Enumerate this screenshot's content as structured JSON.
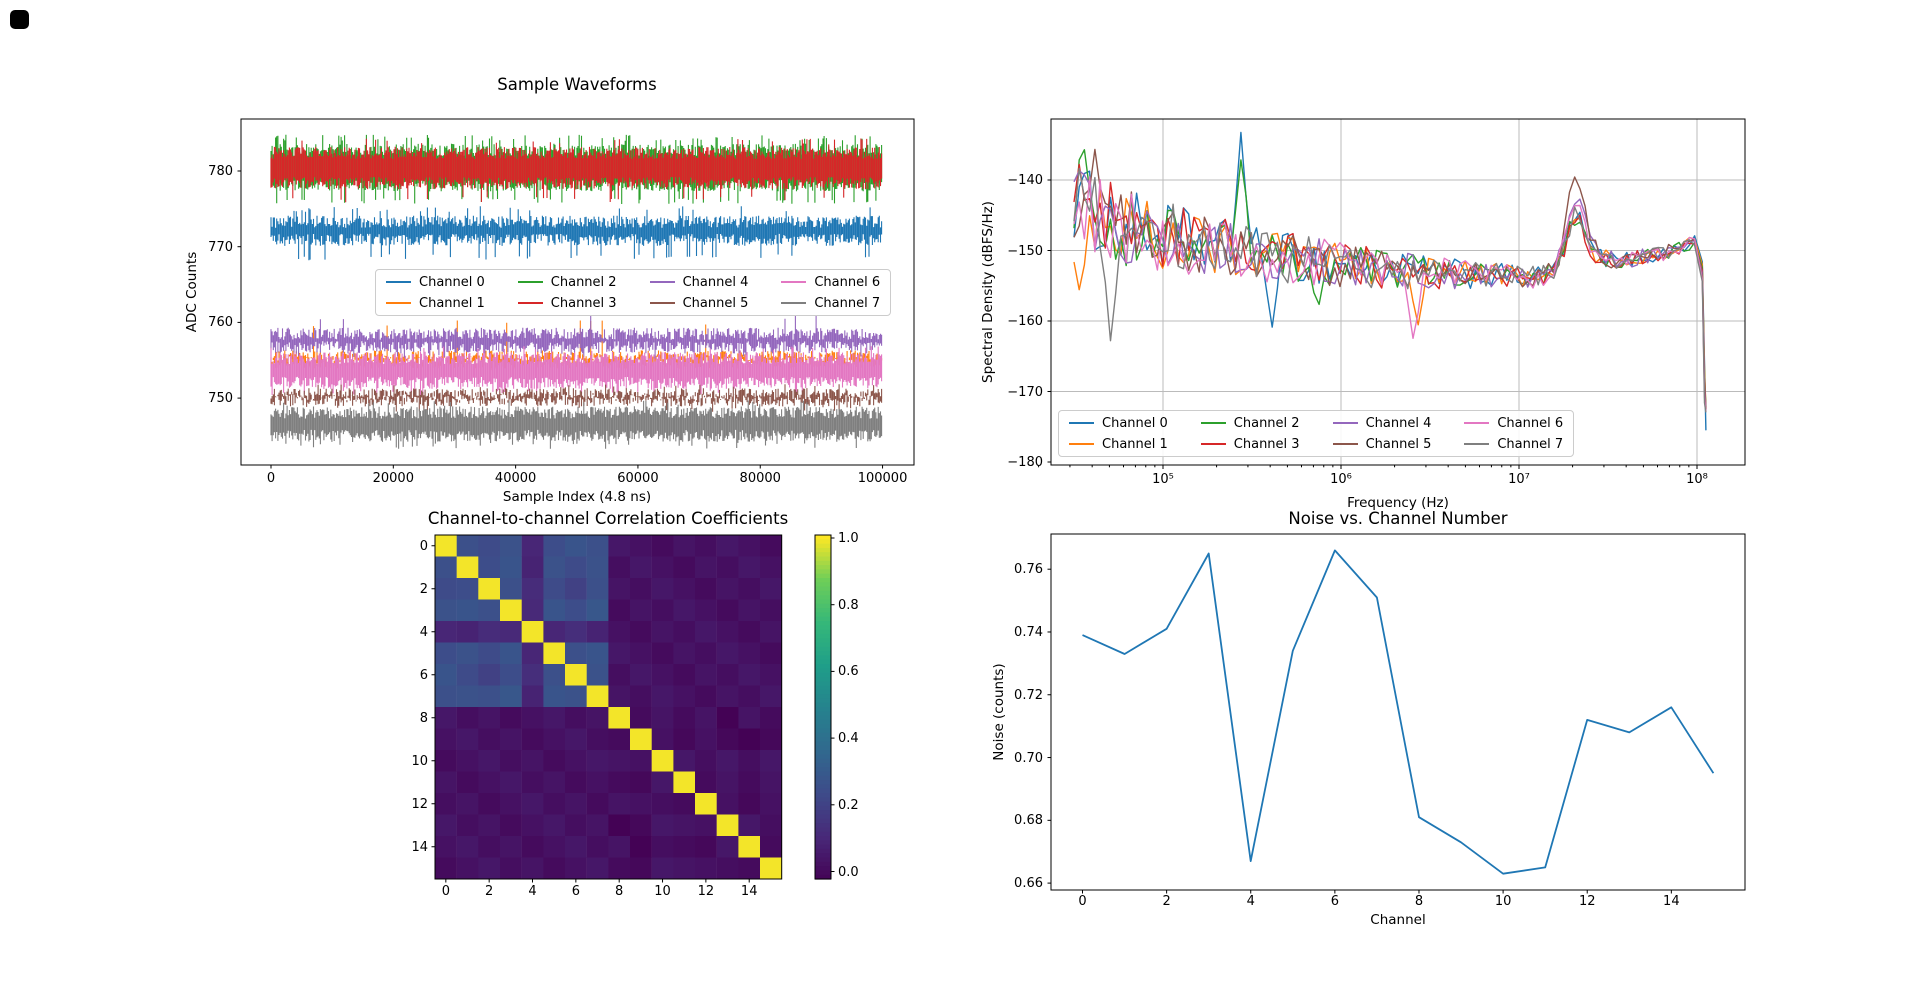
{
  "window": {
    "background": "#ffffff",
    "corner_mark_color": "#000000"
  },
  "channels": [
    {
      "label": "Channel 0",
      "color": "#1f77b4"
    },
    {
      "label": "Channel 1",
      "color": "#ff7f0e"
    },
    {
      "label": "Channel 2",
      "color": "#2ca02c"
    },
    {
      "label": "Channel 3",
      "color": "#d62728"
    },
    {
      "label": "Channel 4",
      "color": "#9467bd"
    },
    {
      "label": "Channel 5",
      "color": "#8c564b"
    },
    {
      "label": "Channel 6",
      "color": "#e377c2"
    },
    {
      "label": "Channel 7",
      "color": "#7f7f7f"
    }
  ],
  "chart_data": [
    {
      "id": "waveforms",
      "type": "line",
      "title": "Sample Waveforms",
      "xlabel": "Sample Index (4.8 ns)",
      "ylabel": "ADC Counts",
      "xlim": [
        -5000,
        105000
      ],
      "ylim": [
        741.4,
        786.5
      ],
      "xticks": [
        0,
        20000,
        40000,
        60000,
        80000,
        100000
      ],
      "xtick_labels": [
        "0",
        "20000",
        "40000",
        "60000",
        "80000",
        "100000"
      ],
      "yticks": [
        750,
        760,
        770,
        780
      ],
      "ytick_labels": [
        "750",
        "760",
        "770",
        "780"
      ],
      "legend": {
        "ncol": 4,
        "order": "column-major",
        "location": "center"
      },
      "series": [
        {
          "channel": 2,
          "band": [
            777.3,
            783.6
          ],
          "spike_high": 784.8,
          "rate_high": 0.12,
          "spike_low": 775.6,
          "rate_low": 0.09
        },
        {
          "channel": 3,
          "band": [
            777.6,
            783.2
          ],
          "spike_high": 784.3,
          "rate_high": 0.05,
          "spike_low": 775.8,
          "rate_low": 0.06
        },
        {
          "channel": 0,
          "band": [
            770.1,
            774.1
          ],
          "spike_high": 775.4,
          "rate_high": 0.05,
          "spike_low": 768.2,
          "rate_low": 0.06
        },
        {
          "channel": 1,
          "band": [
            753.9,
            756.3
          ],
          "spike_high": 760.3,
          "rate_high": 0.012,
          "spike_low": 753.4,
          "rate_low": 0.03
        },
        {
          "channel": 4,
          "band": [
            755.9,
            759.3
          ],
          "spike_high": 761.2,
          "rate_high": 0.005,
          "spike_low": 755.1,
          "rate_low": 0.04
        },
        {
          "channel": 6,
          "band": [
            751.2,
            756.1
          ],
          "spike_high": 756.9,
          "rate_high": 0.06,
          "spike_low": 750.3,
          "rate_low": 0.05
        },
        {
          "channel": 5,
          "band": [
            748.9,
            751.3
          ],
          "spike_high": 751.9,
          "rate_high": 0.05,
          "spike_low": 748.2,
          "rate_low": 0.05
        },
        {
          "channel": 7,
          "band": [
            744.2,
            748.9
          ],
          "spike_high": 749.7,
          "rate_high": 0.04,
          "spike_low": 743.3,
          "rate_low": 0.06
        }
      ]
    },
    {
      "id": "spectral_density",
      "type": "line",
      "xlabel": "Frequency (Hz)",
      "ylabel": "Spectral Density (dBFS/Hz)",
      "xscale": "log",
      "grid": true,
      "xticks": [
        5,
        6,
        7,
        8
      ],
      "xtick_labels": [
        "10⁵",
        "10⁶",
        "10⁷",
        "10⁸"
      ],
      "yticks": [
        -140,
        -150,
        -160,
        -170,
        -180
      ],
      "ytick_labels": [
        "−140",
        "−150",
        "−160",
        "−170",
        "−180"
      ],
      "freq_range_log10": [
        4.5,
        8.02
      ],
      "baseline_dbfs": [
        [
          4.5,
          -143
        ],
        [
          4.75,
          -146.5
        ],
        [
          5.0,
          -148
        ],
        [
          5.5,
          -150.5
        ],
        [
          6.0,
          -152
        ],
        [
          6.5,
          -153.2
        ],
        [
          7.1,
          -153.8
        ],
        [
          7.45,
          -150.8
        ],
        [
          7.55,
          -151.5
        ],
        [
          7.8,
          -150.5
        ],
        [
          8.0,
          -148.6
        ]
      ],
      "noise_amp_db": [
        [
          4.5,
          6
        ],
        [
          5.0,
          5
        ],
        [
          5.5,
          4
        ],
        [
          6.0,
          3.2
        ],
        [
          6.5,
          2.4
        ],
        [
          7.0,
          1.6
        ],
        [
          8.02,
          0.9
        ]
      ],
      "resonance": {
        "log_freq": 7.32,
        "sigma": 0.05,
        "peak_db_by_channel": [
          6.5,
          6,
          7,
          6.5,
          9.5,
          13,
          8,
          7
        ]
      },
      "spikes": [
        {
          "channel": 0,
          "log_freq": 5.45,
          "delta_db": 17
        },
        {
          "channel": 2,
          "log_freq": 5.43,
          "delta_db": 13
        },
        {
          "channel": 2,
          "log_freq": 4.55,
          "delta_db": 8
        },
        {
          "channel": 5,
          "log_freq": 4.62,
          "delta_db": 9
        },
        {
          "channel": 7,
          "log_freq": 4.7,
          "delta_db": -17
        },
        {
          "channel": 1,
          "log_freq": 4.54,
          "delta_db": -12
        },
        {
          "channel": 6,
          "log_freq": 6.4,
          "delta_db": -9.5
        },
        {
          "channel": 1,
          "log_freq": 6.43,
          "delta_db": -7.5
        },
        {
          "channel": 0,
          "log_freq": 5.62,
          "delta_db": -10
        },
        {
          "channel": 2,
          "log_freq": 5.88,
          "delta_db": -6
        }
      ],
      "rolloff": {
        "log_freq": 8.02,
        "floor_db": -175.5
      },
      "legend": {
        "ncol": 4,
        "order": "column-major",
        "location": "lower left"
      }
    },
    {
      "id": "correlation",
      "type": "heatmap",
      "title": "Channel-to-channel Correlation Coefficients",
      "colormap": "viridis",
      "xticks": [
        0,
        2,
        4,
        6,
        8,
        10,
        12,
        14
      ],
      "xtick_labels": [
        "0",
        "2",
        "4",
        "6",
        "8",
        "10",
        "12",
        "14"
      ],
      "yticks": [
        0,
        2,
        4,
        6,
        8,
        10,
        12,
        14
      ],
      "ytick_labels": [
        "0",
        "2",
        "4",
        "6",
        "8",
        "10",
        "12",
        "14"
      ],
      "colorbar_ticks": [
        0.0,
        0.2,
        0.4,
        0.6,
        0.8,
        1.0
      ],
      "colorbar_tick_labels": [
        "0.0",
        "0.2",
        "0.4",
        "0.6",
        "0.8",
        "1.0"
      ],
      "matrix": [
        [
          1.0,
          0.26,
          0.24,
          0.27,
          0.1,
          0.25,
          0.28,
          0.26,
          0.05,
          0.03,
          0.01,
          0.04,
          0.02,
          0.05,
          0.03,
          0.01
        ],
        [
          0.26,
          1.0,
          0.25,
          0.28,
          0.09,
          0.27,
          0.24,
          0.27,
          0.02,
          0.05,
          0.03,
          0.01,
          0.04,
          0.02,
          0.05,
          0.03
        ],
        [
          0.24,
          0.25,
          1.0,
          0.26,
          0.12,
          0.24,
          0.2,
          0.26,
          0.04,
          0.02,
          0.05,
          0.03,
          0.01,
          0.04,
          0.02,
          0.05
        ],
        [
          0.27,
          0.28,
          0.26,
          1.0,
          0.11,
          0.28,
          0.25,
          0.29,
          0.01,
          0.04,
          0.02,
          0.05,
          0.03,
          0.01,
          0.04,
          0.02
        ],
        [
          0.1,
          0.09,
          0.12,
          0.11,
          1.0,
          0.1,
          0.13,
          0.09,
          0.03,
          0.01,
          0.04,
          0.02,
          0.05,
          0.03,
          0.01,
          0.04
        ],
        [
          0.25,
          0.27,
          0.24,
          0.28,
          0.1,
          1.0,
          0.26,
          0.28,
          0.05,
          0.03,
          0.01,
          0.04,
          0.02,
          0.05,
          0.03,
          0.01
        ],
        [
          0.28,
          0.24,
          0.2,
          0.25,
          0.13,
          0.26,
          1.0,
          0.27,
          0.02,
          0.05,
          0.03,
          0.01,
          0.04,
          0.02,
          0.05,
          0.03
        ],
        [
          0.26,
          0.27,
          0.26,
          0.29,
          0.09,
          0.28,
          0.27,
          1.0,
          0.04,
          0.02,
          0.05,
          0.03,
          0.01,
          0.04,
          0.02,
          0.05
        ],
        [
          0.05,
          0.02,
          0.04,
          0.01,
          0.03,
          0.05,
          0.02,
          0.04,
          1.0,
          0.01,
          0.04,
          0.01,
          0.04,
          -0.02,
          0.04,
          0.01
        ],
        [
          0.03,
          0.05,
          0.02,
          0.04,
          0.01,
          0.03,
          0.05,
          0.02,
          0.01,
          1.0,
          0.03,
          0.0,
          0.03,
          0.0,
          -0.02,
          0.0
        ],
        [
          0.01,
          0.03,
          0.05,
          0.02,
          0.04,
          0.01,
          0.03,
          0.05,
          0.04,
          0.03,
          1.0,
          0.05,
          0.02,
          0.05,
          0.02,
          0.05
        ],
        [
          0.04,
          0.01,
          0.03,
          0.05,
          0.02,
          0.04,
          0.01,
          0.03,
          0.01,
          0.0,
          0.05,
          1.0,
          0.01,
          0.04,
          0.01,
          0.04
        ],
        [
          0.02,
          0.04,
          0.01,
          0.03,
          0.05,
          0.02,
          0.04,
          0.01,
          0.04,
          0.03,
          0.02,
          0.01,
          1.0,
          0.03,
          0.0,
          0.03
        ],
        [
          0.05,
          0.02,
          0.04,
          0.01,
          0.03,
          0.05,
          0.02,
          0.04,
          -0.02,
          0.0,
          0.05,
          0.04,
          0.03,
          1.0,
          0.05,
          0.02
        ],
        [
          0.03,
          0.05,
          0.02,
          0.04,
          0.01,
          0.03,
          0.05,
          0.02,
          0.04,
          -0.02,
          0.02,
          0.01,
          0.0,
          0.05,
          1.0,
          0.01
        ],
        [
          0.01,
          0.03,
          0.05,
          0.02,
          0.04,
          0.01,
          0.03,
          0.05,
          0.01,
          0.0,
          0.05,
          0.04,
          0.03,
          0.02,
          0.01,
          1.0
        ]
      ]
    },
    {
      "id": "noise_vs_channel",
      "type": "line",
      "title": "Noise vs. Channel Number",
      "xlabel": "Channel",
      "ylabel": "Noise (counts)",
      "line_color": "#1f77b4",
      "channel": [
        0,
        1,
        2,
        3,
        4,
        5,
        6,
        7,
        8,
        9,
        10,
        11,
        12,
        13,
        14,
        15
      ],
      "noise_counts": [
        0.739,
        0.733,
        0.741,
        0.765,
        0.667,
        0.734,
        0.766,
        0.751,
        0.681,
        0.673,
        0.663,
        0.665,
        0.712,
        0.708,
        0.716,
        0.695
      ],
      "xticks": [
        0,
        2,
        4,
        6,
        8,
        10,
        12,
        14
      ],
      "xtick_labels": [
        "0",
        "2",
        "4",
        "6",
        "8",
        "10",
        "12",
        "14"
      ],
      "yticks": [
        0.66,
        0.68,
        0.7,
        0.72,
        0.74,
        0.76
      ],
      "ytick_labels": [
        "0.66",
        "0.68",
        "0.70",
        "0.72",
        "0.74",
        "0.76"
      ]
    }
  ]
}
